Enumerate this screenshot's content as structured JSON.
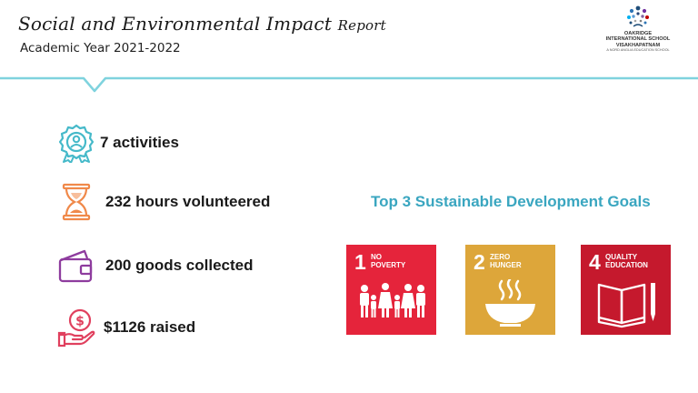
{
  "header": {
    "title_main": "Social and Environmental Impact",
    "title_suffix": "Report",
    "subtitle": "Academic Year 2021-2022"
  },
  "logo": {
    "line1": "OAKRIDGE",
    "line2": "INTERNATIONAL SCHOOL",
    "line3": "VISAKHAPATNAM",
    "line4": "A NORD ANGLIA EDUCATION SCHOOL"
  },
  "stats": [
    {
      "icon": "award-ribbon-icon",
      "label": "7 activities"
    },
    {
      "icon": "hourglass-icon",
      "label": "232 hours volunteered"
    },
    {
      "icon": "wallet-icon",
      "label": "200 goods collected"
    },
    {
      "icon": "hand-coin-icon",
      "label": "$1126 raised"
    }
  ],
  "sdg": {
    "heading": "Top 3 Sustainable Development Goals",
    "goals": [
      {
        "number": "1",
        "label": "NO\nPOVERTY",
        "color": "#e5243b"
      },
      {
        "number": "2",
        "label": "ZERO\nHUNGER",
        "color": "#dda63a"
      },
      {
        "number": "4",
        "label": "QUALITY\nEDUCATION",
        "color": "#c5192d"
      }
    ]
  },
  "colors": {
    "accent_teal": "#7fd3de",
    "heading_blue": "#3aa6c0"
  }
}
